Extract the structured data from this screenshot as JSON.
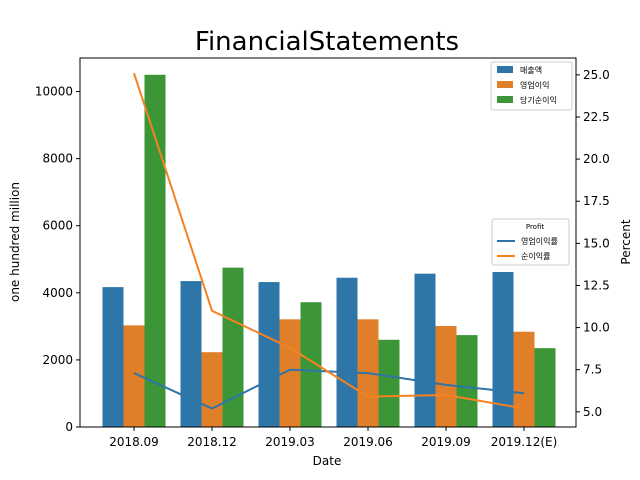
{
  "chart_data": {
    "type": "bar",
    "title": "FinancialStatements",
    "xlabel": "Date",
    "ylabel": "one hundred million",
    "y2label": "Percent",
    "categories": [
      "2018.09",
      "2018.12",
      "2019.03",
      "2019.06",
      "2019.09",
      "2019.12(E)"
    ],
    "ylim": [
      0,
      11000
    ],
    "y2lim": [
      4.1,
      26.0
    ],
    "yticks": [
      0,
      2000,
      4000,
      6000,
      8000,
      10000
    ],
    "y2ticks": [
      5.0,
      7.5,
      10.0,
      12.5,
      15.0,
      17.5,
      20.0,
      22.5,
      25.0
    ],
    "series": [
      {
        "name": "매출액",
        "color": "#2e75a8",
        "values": [
          4170,
          4350,
          4320,
          4450,
          4570,
          4620
        ]
      },
      {
        "name": "영업이익",
        "color": "#e07f2a",
        "values": [
          3030,
          2230,
          3210,
          3210,
          3010,
          2840
        ]
      },
      {
        "name": "당기순이익",
        "color": "#3c9638",
        "values": [
          10500,
          4750,
          3720,
          2600,
          2740,
          2350
        ]
      }
    ],
    "line_series": [
      {
        "name": "영업이익률",
        "color": "#2e75a8",
        "values": [
          7.3,
          5.2,
          7.5,
          7.3,
          6.6,
          6.1
        ]
      },
      {
        "name": "순이익률",
        "color": "#f58220",
        "values": [
          25.1,
          11.0,
          8.8,
          5.9,
          6.0,
          5.2
        ]
      }
    ],
    "bar_legend_position": "top-right",
    "line_legend_title": "Profit",
    "line_legend_position": "center-right",
    "grid": false
  }
}
